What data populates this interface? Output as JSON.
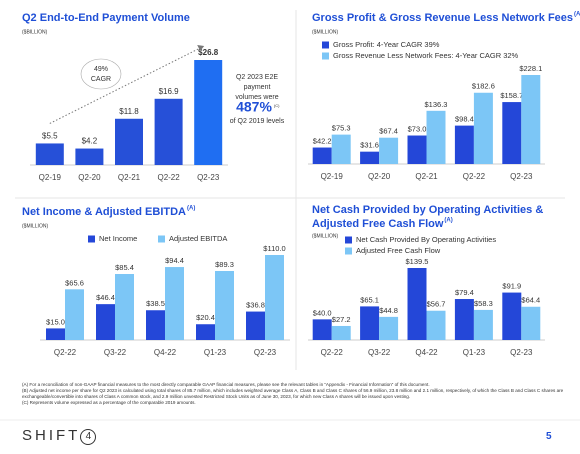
{
  "chart_data": [
    {
      "type": "bar",
      "title": "Q2 End-to-End Payment Volume",
      "subtitle": "($BILLION)",
      "categories": [
        "Q2-19",
        "Q2-20",
        "Q2-21",
        "Q2-22",
        "Q2-23"
      ],
      "values": [
        5.5,
        4.2,
        11.8,
        16.9,
        26.8
      ],
      "value_labels": [
        "$5.5",
        "$4.2",
        "$11.8",
        "$16.9",
        "$26.8"
      ],
      "colors": [
        "#2650d8",
        "#2650d8",
        "#2650d8",
        "#2650d8",
        "#1f6ef2"
      ],
      "annotations": {
        "cagr": [
          "49%",
          "CAGR"
        ],
        "callout": [
          "Q2 2023 E2E",
          "payment",
          "volumes were"
        ],
        "callout_value": "487%",
        "callout_note": "(C)",
        "callout_end": "of Q2 2019 levels"
      }
    },
    {
      "type": "grouped-bar",
      "title": "Gross Profit & Gross Revenue Less Network Fees",
      "title_note": "(A)",
      "subtitle": "($MILLION)",
      "categories": [
        "Q2-19",
        "Q2-20",
        "Q2-21",
        "Q2-22",
        "Q2-23"
      ],
      "series": [
        {
          "name": "Gross Profit: 4-Year CAGR 39%",
          "color": "#2447d8",
          "values": [
            42.2,
            31.6,
            73.0,
            98.4,
            158.7
          ],
          "value_labels": [
            "$42.2",
            "$31.6",
            "$73.0",
            "$98.4",
            "$158.7"
          ]
        },
        {
          "name": "Gross Revenue Less Network Fees: 4-Year CAGR 32%",
          "color": "#7cc6f6",
          "values": [
            75.3,
            67.4,
            136.3,
            182.6,
            228.1
          ],
          "value_labels": [
            "$75.3",
            "$67.4",
            "$136.3",
            "$182.6",
            "$228.1"
          ]
        }
      ]
    },
    {
      "type": "grouped-bar",
      "title": "Net Income & Adjusted EBITDA",
      "title_note": "(A)",
      "subtitle": "($MILLION)",
      "categories": [
        "Q2-22",
        "Q3-22",
        "Q4-22",
        "Q1-23",
        "Q2-23"
      ],
      "series": [
        {
          "name": "Net Income",
          "color": "#2447d8",
          "values": [
            15.0,
            46.4,
            38.5,
            20.4,
            36.8
          ],
          "value_labels": [
            "$15.0",
            "$46.4",
            "$38.5",
            "$20.4",
            "$36.8"
          ]
        },
        {
          "name": "Adjusted EBITDA",
          "color": "#7cc6f6",
          "values": [
            65.6,
            85.4,
            94.4,
            89.3,
            110.0
          ],
          "value_labels": [
            "$65.6",
            "$85.4",
            "$94.4",
            "$89.3",
            "$110.0"
          ]
        }
      ]
    },
    {
      "type": "grouped-bar",
      "title": [
        "Net Cash Provided by Operating Activities &",
        "Adjusted Free Cash Flow"
      ],
      "title_note": "(A)",
      "subtitle": "($MILLION)",
      "categories": [
        "Q2-22",
        "Q3-22",
        "Q4-22",
        "Q1-23",
        "Q2-23"
      ],
      "series": [
        {
          "name": "Net Cash Provided By Operating Activities",
          "color": "#2447d8",
          "values": [
            40.0,
            65.1,
            139.5,
            79.4,
            91.9
          ],
          "value_labels": [
            "$40.0",
            "$65.1",
            "$139.5",
            "$79.4",
            "$91.9"
          ]
        },
        {
          "name": "Adjusted Free Cash Flow",
          "color": "#7cc6f6",
          "values": [
            27.2,
            44.8,
            56.7,
            58.3,
            64.4
          ],
          "value_labels": [
            "$27.2",
            "$44.8",
            "$56.7",
            "$58.3",
            "$64.4"
          ]
        }
      ]
    }
  ],
  "footnotes": [
    "(A) For a reconciliation of non-GAAP financial measures to the most directly comparable GAAP financial measures, please see the relevant tables in “Appendix - Financial Information” of this document.",
    "(B) Adjusted net income per share for Q2 2023 is calculated using total shares of 85.7 million, which includes weighted average Class A, Class B and Class C shares of 56.9 million, 23.8 million and 2.1 million, respectively, of which the Class B and Class C shares are exchangeable/convertible into shares of Class A common stock, and 2.9 million unvested Restricted Stock Units as of June 30, 2023, for which new Class A shares will be issued upon vesting.",
    "(C) Represents volume expressed as a percentage of the comparable 2019 amounts."
  ],
  "footer": {
    "logo": "SHIFT",
    "logo_mark": "4",
    "page": "5"
  }
}
